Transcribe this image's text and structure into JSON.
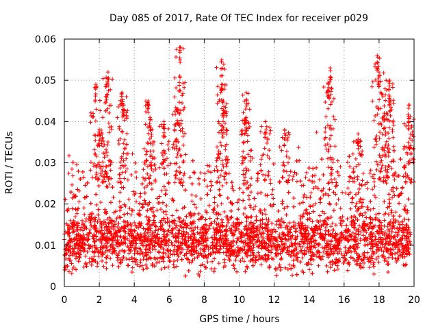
{
  "chart_data": {
    "type": "scatter",
    "title": "Day 085 of 2017, Rate Of TEC Index for receiver p029",
    "xlabel": "GPS time / hours",
    "ylabel": "ROTI / TECUs",
    "xlim": [
      0,
      20
    ],
    "ylim": [
      0,
      0.06
    ],
    "x_ticks": [
      0,
      2,
      4,
      6,
      8,
      10,
      12,
      14,
      16,
      18,
      20
    ],
    "x_tick_labels": [
      "0",
      "2",
      "4",
      "6",
      "8",
      "10",
      "12",
      "14",
      "16",
      "18",
      "20"
    ],
    "y_ticks": [
      0,
      0.01,
      0.02,
      0.03,
      0.04,
      0.05,
      0.06
    ],
    "y_tick_labels": [
      "0",
      "0.01",
      "0.02",
      "0.03",
      "0.04",
      "0.05",
      "0.06"
    ],
    "grid": true,
    "marker": "+",
    "marker_color": "#ff0000",
    "series": [
      {
        "name": "ROTI",
        "bulk_band": {
          "x_range": [
            0,
            19.8
          ],
          "median": 0.011,
          "typical_low": 0.004,
          "typical_high": 0.025
        },
        "peaks": [
          {
            "x": 1.8,
            "y": 0.049
          },
          {
            "x": 2.0,
            "y": 0.038
          },
          {
            "x": 2.4,
            "y": 0.049
          },
          {
            "x": 2.5,
            "y": 0.052
          },
          {
            "x": 3.3,
            "y": 0.047
          },
          {
            "x": 3.4,
            "y": 0.044
          },
          {
            "x": 4.8,
            "y": 0.045
          },
          {
            "x": 4.9,
            "y": 0.041
          },
          {
            "x": 5.7,
            "y": 0.04
          },
          {
            "x": 6.6,
            "y": 0.058
          },
          {
            "x": 6.6,
            "y": 0.051
          },
          {
            "x": 6.5,
            "y": 0.043
          },
          {
            "x": 9.0,
            "y": 0.055
          },
          {
            "x": 9.0,
            "y": 0.049
          },
          {
            "x": 9.1,
            "y": 0.045
          },
          {
            "x": 10.4,
            "y": 0.047
          },
          {
            "x": 10.4,
            "y": 0.041
          },
          {
            "x": 11.5,
            "y": 0.04
          },
          {
            "x": 12.6,
            "y": 0.038
          },
          {
            "x": 15.2,
            "y": 0.053
          },
          {
            "x": 15.1,
            "y": 0.049
          },
          {
            "x": 16.8,
            "y": 0.037
          },
          {
            "x": 17.9,
            "y": 0.056
          },
          {
            "x": 18.0,
            "y": 0.052
          },
          {
            "x": 18.3,
            "y": 0.042
          },
          {
            "x": 18.6,
            "y": 0.05
          },
          {
            "x": 18.6,
            "y": 0.046
          },
          {
            "x": 19.7,
            "y": 0.044
          },
          {
            "x": 19.7,
            "y": 0.04
          }
        ]
      }
    ]
  }
}
